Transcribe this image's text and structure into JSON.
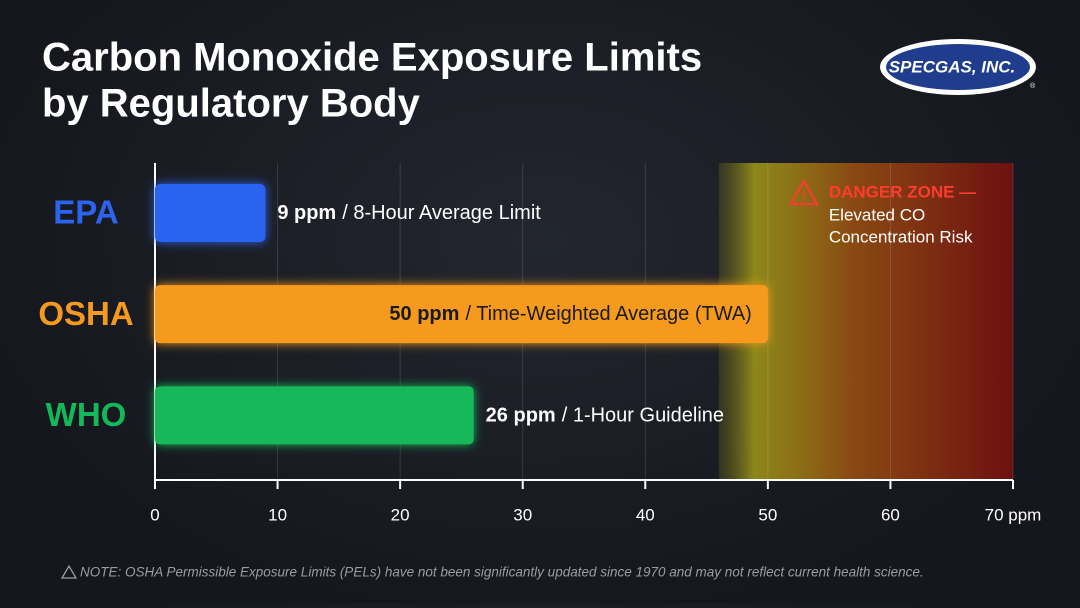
{
  "logo": {
    "text": "SPECGAS, INC.",
    "mark": "®"
  },
  "note": "NOTE: OSHA Permissible Exposure Limits (PELs) have not been significantly updated since 1970 and may not reflect current health science.",
  "chart_data": {
    "type": "bar",
    "orientation": "horizontal",
    "title": [
      "Carbon Monoxide Exposure Limits",
      "by Regulatory Body"
    ],
    "categories": [
      "EPA",
      "OSHA",
      "WHO"
    ],
    "values": [
      9,
      50,
      26
    ],
    "value_labels": [
      "9 ppm",
      "50 ppm",
      "26 ppm"
    ],
    "descriptions": [
      "/ 8-Hour Average Limit",
      "/ Time-Weighted Average (TWA)",
      "/ 1-Hour Guideline"
    ],
    "colors": [
      "#2c64f0",
      "#f59a1e",
      "#12b85a"
    ],
    "xlim": [
      0,
      70
    ],
    "xticks": [
      0,
      10,
      20,
      30,
      40,
      50,
      60,
      {
        "value": 70,
        "label": "70 ppm"
      }
    ],
    "grid": true,
    "danger_zone": {
      "start": 46,
      "title": "DANGER ZONE —",
      "lines": [
        "Elevated CO",
        "Concentration Risk"
      ]
    }
  }
}
